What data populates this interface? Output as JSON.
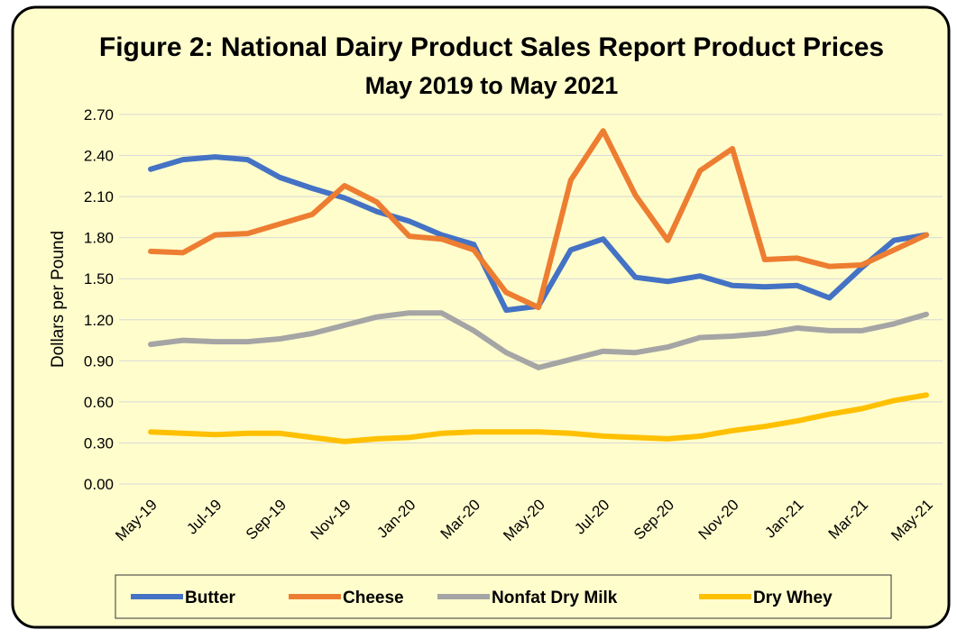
{
  "chart_data": {
    "type": "line",
    "title": "Figure 2: National Dairy Product Sales Report Product Prices",
    "subtitle": "May 2019 to May 2021",
    "y_label": "Dollars per Pound",
    "categories": [
      "May-19",
      null,
      "Jul-19",
      null,
      "Sep-19",
      null,
      "Nov-19",
      null,
      "Jan-20",
      null,
      "Mar-20",
      null,
      "May-20",
      null,
      "Jul-20",
      null,
      "Sep-20",
      null,
      "Nov-20",
      null,
      "Jan-21",
      null,
      "Mar-21",
      null,
      "May-21"
    ],
    "series": [
      {
        "name": "Butter",
        "color": "#4472c4",
        "values": [
          2.3,
          2.37,
          2.39,
          2.37,
          2.24,
          2.16,
          2.09,
          1.99,
          1.92,
          1.82,
          1.75,
          1.27,
          1.3,
          1.71,
          1.79,
          1.51,
          1.48,
          1.52,
          1.45,
          1.44,
          1.45,
          1.36,
          1.58,
          1.78,
          1.82
        ]
      },
      {
        "name": "Cheese",
        "color": "#ed7d31",
        "values": [
          1.7,
          1.69,
          1.82,
          1.83,
          1.9,
          1.97,
          2.18,
          2.06,
          1.81,
          1.79,
          1.71,
          1.4,
          1.29,
          2.22,
          2.58,
          2.11,
          1.78,
          2.29,
          2.45,
          1.64,
          1.65,
          1.59,
          1.6,
          1.71,
          1.82
        ]
      },
      {
        "name": "Nonfat Dry Milk",
        "color": "#a5a5a5",
        "values": [
          1.02,
          1.05,
          1.04,
          1.04,
          1.06,
          1.1,
          1.16,
          1.22,
          1.25,
          1.25,
          1.12,
          0.96,
          0.85,
          0.91,
          0.97,
          0.96,
          1.0,
          1.07,
          1.08,
          1.1,
          1.14,
          1.12,
          1.12,
          1.17,
          1.24
        ]
      },
      {
        "name": "Dry Whey",
        "color": "#ffc000",
        "values": [
          0.38,
          0.37,
          0.36,
          0.37,
          0.37,
          0.34,
          0.31,
          0.33,
          0.34,
          0.37,
          0.38,
          0.38,
          0.38,
          0.37,
          0.35,
          0.34,
          0.33,
          0.35,
          0.39,
          0.42,
          0.46,
          0.51,
          0.55,
          0.61,
          0.65
        ]
      }
    ],
    "ylim": [
      0,
      2.7
    ],
    "yticks": [
      {
        "value": 0,
        "label": "0.00"
      },
      {
        "value": 0.3,
        "label": "0.30"
      },
      {
        "value": 0.6,
        "label": "0.60"
      },
      {
        "value": 0.9,
        "label": "0.90"
      },
      {
        "value": 1.2,
        "label": "1.20"
      },
      {
        "value": 1.5,
        "label": "1.50"
      },
      {
        "value": 1.8,
        "label": "1.80"
      },
      {
        "value": 2.1,
        "label": "2.10"
      },
      {
        "value": 2.4,
        "label": "2.40"
      },
      {
        "value": 2.7,
        "label": "2.70"
      }
    ],
    "grid": true,
    "legend": "bottom"
  }
}
